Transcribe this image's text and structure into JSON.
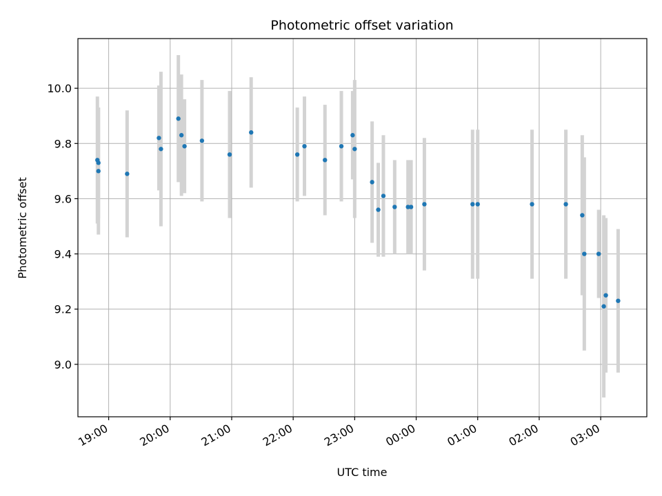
{
  "chart_data": {
    "type": "scatter",
    "title": "Photometric offset variation",
    "xlabel": "UTC time",
    "ylabel": "Photometric offset",
    "x_unit": "UTC date-time",
    "xlim": [
      "18:30",
      "03:45"
    ],
    "ylim": [
      8.81,
      10.18
    ],
    "grid": true,
    "legend": "none",
    "x_ticks": [
      "19:00",
      "20:00",
      "21:00",
      "22:00",
      "23:00",
      "00:00",
      "01:00",
      "02:00",
      "03:00"
    ],
    "y_ticks": [
      "9.0",
      "9.2",
      "9.4",
      "9.6",
      "9.8",
      "10.0"
    ],
    "colors": {
      "point": "#1f77b4",
      "errorbar": "#d3d3d3",
      "grid": "#b0b0b0"
    },
    "points": [
      {
        "x": "18:49",
        "y": 9.74,
        "yerr": 0.23
      },
      {
        "x": "18:50",
        "y": 9.73,
        "yerr": 0.2
      },
      {
        "x": "18:50",
        "y": 9.7,
        "yerr": 0.23
      },
      {
        "x": "19:18",
        "y": 9.69,
        "yerr": 0.23
      },
      {
        "x": "19:49",
        "y": 9.82,
        "yerr": 0.19
      },
      {
        "x": "19:51",
        "y": 9.78,
        "yerr": 0.28
      },
      {
        "x": "20:08",
        "y": 9.89,
        "yerr": 0.23
      },
      {
        "x": "20:11",
        "y": 9.83,
        "yerr": 0.22
      },
      {
        "x": "20:14",
        "y": 9.79,
        "yerr": 0.17
      },
      {
        "x": "20:31",
        "y": 9.81,
        "yerr": 0.22
      },
      {
        "x": "20:58",
        "y": 9.76,
        "yerr": 0.23
      },
      {
        "x": "21:19",
        "y": 9.84,
        "yerr": 0.2
      },
      {
        "x": "22:04",
        "y": 9.76,
        "yerr": 0.17
      },
      {
        "x": "22:11",
        "y": 9.79,
        "yerr": 0.18
      },
      {
        "x": "22:31",
        "y": 9.74,
        "yerr": 0.2
      },
      {
        "x": "22:47",
        "y": 9.79,
        "yerr": 0.2
      },
      {
        "x": "22:58",
        "y": 9.83,
        "yerr": 0.16
      },
      {
        "x": "23:00",
        "y": 9.78,
        "yerr": 0.25
      },
      {
        "x": "23:17",
        "y": 9.66,
        "yerr": 0.22
      },
      {
        "x": "23:23",
        "y": 9.56,
        "yerr": 0.17
      },
      {
        "x": "23:28",
        "y": 9.61,
        "yerr": 0.22
      },
      {
        "x": "23:39",
        "y": 9.57,
        "yerr": 0.17
      },
      {
        "x": "23:52",
        "y": 9.57,
        "yerr": 0.17
      },
      {
        "x": "23:55",
        "y": 9.57,
        "yerr": 0.17
      },
      {
        "x": "00:08",
        "y": 9.58,
        "yerr": 0.24
      },
      {
        "x": "00:55",
        "y": 9.58,
        "yerr": 0.27
      },
      {
        "x": "01:00",
        "y": 9.58,
        "yerr": 0.27
      },
      {
        "x": "01:53",
        "y": 9.58,
        "yerr": 0.27
      },
      {
        "x": "02:26",
        "y": 9.58,
        "yerr": 0.27
      },
      {
        "x": "02:42",
        "y": 9.54,
        "yerr": 0.29
      },
      {
        "x": "02:44",
        "y": 9.4,
        "yerr": 0.35
      },
      {
        "x": "02:58",
        "y": 9.4,
        "yerr": 0.16
      },
      {
        "x": "03:03",
        "y": 9.21,
        "yerr": 0.33
      },
      {
        "x": "03:05",
        "y": 9.25,
        "yerr": 0.28
      },
      {
        "x": "03:17",
        "y": 9.23,
        "yerr": 0.26
      }
    ]
  }
}
